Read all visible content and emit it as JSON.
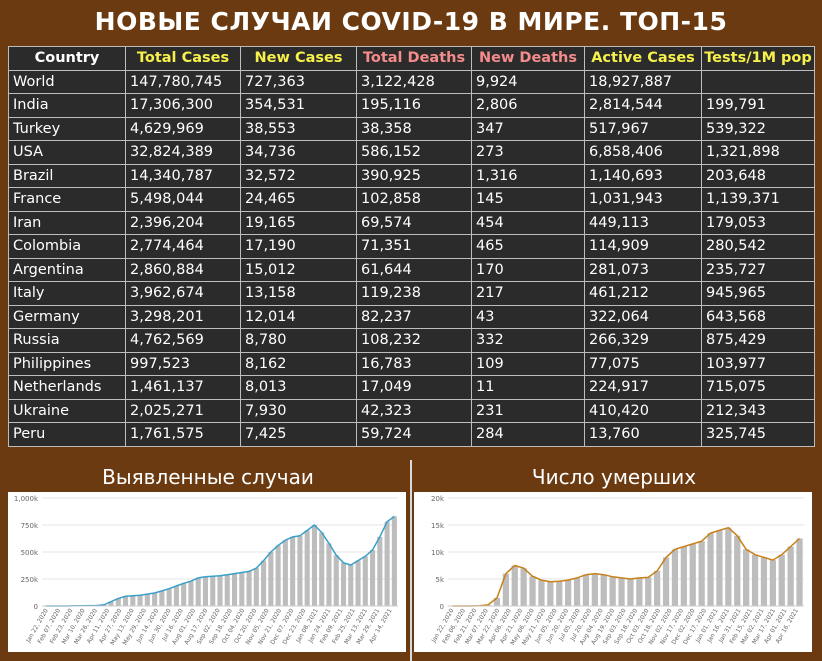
{
  "title": "НОВЫЕ СЛУЧАИ COVID-19 В МИРЕ. ТОП-15",
  "colors": {
    "white": "#ffffff",
    "yellow": "#f6f04a",
    "pink": "#f58b8b",
    "blue_line": "#3aa0c8",
    "orange_line": "#c8811a",
    "bars": "#bdbdbd"
  },
  "table": {
    "headers": [
      {
        "label": "Country",
        "color": "white"
      },
      {
        "label": "Total Cases",
        "color": "yellow"
      },
      {
        "label": "New Cases",
        "color": "yellow"
      },
      {
        "label": "Total Deaths",
        "color": "pink"
      },
      {
        "label": "New Deaths",
        "color": "pink"
      },
      {
        "label": "Active Cases",
        "color": "yellow"
      },
      {
        "label": "Tests/1M pop",
        "color": "yellow"
      }
    ],
    "rows": [
      [
        "World",
        "147,780,745",
        "727,363",
        "3,122,428",
        "9,924",
        "18,927,887",
        ""
      ],
      [
        "India",
        "17,306,300",
        "354,531",
        "195,116",
        "2,806",
        "2,814,544",
        "199,791"
      ],
      [
        "Turkey",
        "4,629,969",
        "38,553",
        "38,358",
        "347",
        "517,967",
        "539,322"
      ],
      [
        "USA",
        "32,824,389",
        "34,736",
        "586,152",
        "273",
        "6,858,406",
        "1,321,898"
      ],
      [
        "Brazil",
        "14,340,787",
        "32,572",
        "390,925",
        "1,316",
        "1,140,693",
        "203,648"
      ],
      [
        "France",
        "5,498,044",
        "24,465",
        "102,858",
        "145",
        "1,031,943",
        "1,139,371"
      ],
      [
        "Iran",
        "2,396,204",
        "19,165",
        "69,574",
        "454",
        "449,113",
        "179,053"
      ],
      [
        "Colombia",
        "2,774,464",
        "17,190",
        "71,351",
        "465",
        "114,909",
        "280,542"
      ],
      [
        "Argentina",
        "2,860,884",
        "15,012",
        "61,644",
        "170",
        "281,073",
        "235,727"
      ],
      [
        "Italy",
        "3,962,674",
        "13,158",
        "119,238",
        "217",
        "461,212",
        "945,965"
      ],
      [
        "Germany",
        "3,298,201",
        "12,014",
        "82,237",
        "43",
        "322,064",
        "643,568"
      ],
      [
        "Russia",
        "4,762,569",
        "8,780",
        "108,232",
        "332",
        "266,329",
        "875,429"
      ],
      [
        "Philippines",
        "997,523",
        "8,162",
        "16,783",
        "109",
        "77,075",
        "103,977"
      ],
      [
        "Netherlands",
        "1,461,137",
        "8,013",
        "17,049",
        "11",
        "224,917",
        "715,075"
      ],
      [
        "Ukraine",
        "2,025,271",
        "7,930",
        "42,323",
        "231",
        "410,420",
        "212,343"
      ],
      [
        "Peru",
        "1,761,575",
        "7,425",
        "59,724",
        "284",
        "13,760",
        "325,745"
      ]
    ]
  },
  "chart_left_title": "Выявленные случаи",
  "chart_right_title": "Число умерших",
  "chart_data": [
    {
      "type": "bar",
      "title": "Выявленные случаи",
      "ylim": [
        0,
        1000000
      ],
      "yticks": [
        0,
        250000,
        500000,
        750000,
        1000000
      ],
      "ytick_labels": [
        "0",
        "250k",
        "500k",
        "750k",
        "1,000k"
      ],
      "xtick_labels": [
        "Jan 22, 2020",
        "Feb 07, 2020",
        "Feb 23, 2020",
        "Mar 10, 2020",
        "Mar 26, 2020",
        "Apr 11, 2020",
        "Apr 27, 2020",
        "May 13, 2020",
        "May 29, 2020",
        "Jun 14, 2020",
        "Jun 30, 2020",
        "Jul 16, 2020",
        "Aug 01, 2020",
        "Aug 17, 2020",
        "Sep 02, 2020",
        "Sep 18, 2020",
        "Oct 04, 2020",
        "Oct 20, 2020",
        "Nov 05, 2020",
        "Nov 21, 2020",
        "Dec 07, 2020",
        "Dec 23, 2020",
        "Jan 08, 2021",
        "Jan 24, 2021",
        "Feb 09, 2021",
        "Feb 25, 2021",
        "Mar 13, 2021",
        "Mar 29, 2021",
        "Apr 14, 2021"
      ],
      "series": [
        {
          "kind": "bar",
          "values": [
            0,
            0,
            0,
            0,
            2000,
            2500,
            4000,
            5000,
            10000,
            40000,
            70000,
            90000,
            95000,
            100000,
            110000,
            120000,
            140000,
            160000,
            185000,
            210000,
            230000,
            260000,
            270000,
            275000,
            280000,
            290000,
            300000,
            310000,
            320000,
            350000,
            420000,
            500000,
            560000,
            610000,
            640000,
            650000,
            700000,
            750000,
            680000,
            580000,
            470000,
            400000,
            380000,
            420000,
            460000,
            520000,
            640000,
            780000,
            830000
          ]
        },
        {
          "kind": "line",
          "values": [
            0,
            0,
            0,
            0,
            2000,
            2500,
            4000,
            5000,
            10000,
            40000,
            70000,
            90000,
            95000,
            100000,
            110000,
            120000,
            140000,
            160000,
            185000,
            210000,
            230000,
            260000,
            270000,
            275000,
            280000,
            290000,
            300000,
            310000,
            320000,
            350000,
            420000,
            500000,
            560000,
            610000,
            640000,
            650000,
            700000,
            750000,
            680000,
            580000,
            470000,
            400000,
            380000,
            420000,
            460000,
            520000,
            640000,
            780000,
            830000
          ]
        }
      ]
    },
    {
      "type": "bar",
      "title": "Число умерших",
      "ylim": [
        0,
        20000
      ],
      "yticks": [
        0,
        5000,
        10000,
        15000,
        20000
      ],
      "ytick_labels": [
        "0",
        "5k",
        "10k",
        "15k",
        "20k"
      ],
      "xtick_labels": [
        "Jan 22, 2020",
        "Feb 06, 2020",
        "Feb 21, 2020",
        "Mar 07, 2020",
        "Mar 22, 2020",
        "Apr 06, 2020",
        "Apr 21, 2020",
        "May 06, 2020",
        "May 21, 2020",
        "Jun 05, 2020",
        "Jun 20, 2020",
        "Jul 05, 2020",
        "Jul 20, 2020",
        "Aug 04, 2020",
        "Aug 19, 2020",
        "Sep 03, 2020",
        "Sep 18, 2020",
        "Oct 03, 2020",
        "Oct 18, 2020",
        "Nov 02, 2020",
        "Nov 17, 2020",
        "Dec 02, 2020",
        "Dec 17, 2020",
        "Jan 01, 2021",
        "Jan 16, 2021",
        "Jan 31, 2021",
        "Feb 15, 2021",
        "Mar 02, 2021",
        "Mar 17, 2021",
        "Apr 01, 2021",
        "Apr 16, 2021"
      ],
      "series": [
        {
          "kind": "bar",
          "values": [
            0,
            0,
            0,
            50,
            200,
            1500,
            6000,
            7500,
            7000,
            5500,
            4800,
            4500,
            4600,
            4800,
            5200,
            5800,
            6000,
            5800,
            5400,
            5200,
            5000,
            5200,
            5300,
            6500,
            9000,
            10500,
            11000,
            11500,
            12000,
            13500,
            14000,
            14500,
            13000,
            10500,
            9500,
            9000,
            8500,
            9500,
            11000,
            12500
          ]
        },
        {
          "kind": "line",
          "values": [
            0,
            0,
            0,
            50,
            200,
            1500,
            6000,
            7500,
            7000,
            5500,
            4800,
            4500,
            4600,
            4800,
            5200,
            5800,
            6000,
            5800,
            5400,
            5200,
            5000,
            5200,
            5300,
            6500,
            9000,
            10500,
            11000,
            11500,
            12000,
            13500,
            14000,
            14500,
            13000,
            10500,
            9500,
            9000,
            8500,
            9500,
            11000,
            12500
          ]
        }
      ]
    }
  ]
}
